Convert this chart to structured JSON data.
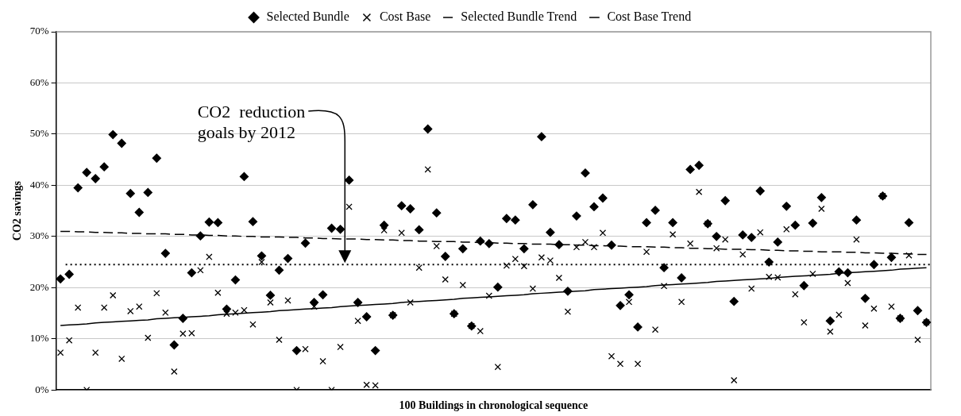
{
  "chart_data": {
    "type": "scatter",
    "xlabel": "100 Buildings in chronological sequence",
    "ylabel": "CO2 savings",
    "categories": [
      null,
      null,
      null,
      null,
      null,
      null,
      null,
      null,
      null,
      null,
      null,
      null,
      null,
      null,
      null,
      null,
      null,
      null,
      null,
      null,
      null,
      null,
      null,
      null,
      null,
      null,
      null,
      null,
      null,
      null,
      null,
      null,
      null,
      null,
      null,
      null,
      null,
      null,
      null,
      null,
      null,
      null,
      null,
      null,
      null,
      null,
      null,
      null,
      null,
      null,
      null,
      null,
      null,
      null,
      null,
      null,
      null,
      null,
      null,
      null,
      null,
      null,
      null,
      null,
      null,
      null,
      null,
      null,
      null,
      null,
      null,
      null,
      null,
      null,
      null,
      null,
      null,
      null,
      null,
      null,
      null,
      null,
      null,
      null,
      null,
      null,
      null,
      null,
      null,
      null,
      null,
      null,
      null,
      null,
      null,
      null,
      null,
      null,
      null,
      null
    ],
    "series": [
      {
        "name": "Selected Bundle",
        "marker": "diamond",
        "color": "#000000",
        "values": [
          21.7,
          22.6,
          39.5,
          42.5,
          41.3,
          43.6,
          49.9,
          48.2,
          38.4,
          34.7,
          38.6,
          45.3,
          26.7,
          8.8,
          14.0,
          22.9,
          30.1,
          32.8,
          32.7,
          15.8,
          21.5,
          41.7,
          32.9,
          26.2,
          18.5,
          23.4,
          25.7,
          7.7,
          28.7,
          17.1,
          18.6,
          31.6,
          31.4,
          41.0,
          17.1,
          14.3,
          7.7,
          32.2,
          14.6,
          36.0,
          35.4,
          31.3,
          51.0,
          34.6,
          26.1,
          14.9,
          27.6,
          12.5,
          29.1,
          28.6,
          20.1,
          33.5,
          33.2,
          27.6,
          36.2,
          49.5,
          30.8,
          28.4,
          19.3,
          34.0,
          42.4,
          35.8,
          37.5,
          28.3,
          16.5,
          18.6,
          12.3,
          32.7,
          35.1,
          23.9,
          32.7,
          21.9,
          43.1,
          43.9,
          32.5,
          30.0,
          37.0,
          17.3,
          30.3,
          29.8,
          38.9,
          25.0,
          28.9,
          35.9,
          32.2,
          20.4,
          32.6,
          37.6,
          13.5,
          23.1,
          22.9,
          33.2,
          17.9,
          24.5,
          37.9,
          25.9,
          14.0,
          32.7,
          15.5,
          13.2
        ]
      },
      {
        "name": "Cost Base",
        "marker": "cross",
        "color": "#000000",
        "values": [
          7.3,
          9.7,
          16.1,
          0,
          7.3,
          16.1,
          18.5,
          6.1,
          15.4,
          16.3,
          10.2,
          18.9,
          15.1,
          3.6,
          11.0,
          11.1,
          23.4,
          26.0,
          19.0,
          14.9,
          15.1,
          15.6,
          12.8,
          25.0,
          17.1,
          9.8,
          17.5,
          0,
          8.0,
          16.3,
          5.6,
          0,
          8.4,
          35.8,
          13.5,
          1.0,
          0.9,
          31.2,
          14.6,
          30.7,
          17.1,
          23.9,
          43.1,
          28.1,
          21.6,
          14.9,
          20.5,
          12.5,
          11.5,
          18.4,
          4.5,
          24.3,
          25.6,
          24.2,
          19.8,
          25.9,
          25.3,
          21.9,
          15.3,
          27.9,
          28.9,
          27.9,
          30.7,
          6.6,
          5.1,
          17.2,
          5.1,
          27.0,
          11.8,
          20.3,
          30.4,
          17.2,
          28.6,
          38.7,
          32.5,
          27.7,
          29.4,
          1.9,
          26.5,
          19.8,
          30.8,
          22.1,
          22.0,
          31.4,
          18.7,
          13.2,
          22.7,
          35.4,
          11.4,
          14.7,
          20.9,
          29.4,
          12.6,
          15.9,
          37.9,
          16.3,
          14.0,
          26.3,
          9.8,
          13.2
        ]
      },
      {
        "name": "Selected Bundle Trend",
        "type": "line",
        "marker": "none",
        "line_style": "dashed",
        "color": "#000000",
        "values": [
          31.0,
          31.0,
          30.9,
          30.9,
          30.8,
          30.8,
          30.7,
          30.7,
          30.6,
          30.6,
          30.5,
          30.5,
          30.5,
          30.4,
          30.4,
          30.3,
          30.3,
          30.2,
          30.2,
          30.1,
          30.1,
          30.0,
          30.0,
          29.9,
          29.9,
          29.9,
          29.8,
          29.8,
          29.7,
          29.7,
          29.6,
          29.6,
          29.5,
          29.5,
          29.5,
          29.4,
          29.4,
          29.3,
          29.3,
          29.2,
          29.2,
          29.1,
          29.1,
          29.0,
          29.0,
          29.0,
          28.9,
          28.9,
          28.8,
          28.8,
          28.7,
          28.7,
          28.6,
          28.6,
          28.5,
          28.5,
          28.5,
          28.4,
          28.4,
          28.3,
          28.3,
          28.2,
          28.2,
          28.1,
          28.1,
          28.0,
          28.0,
          28.0,
          27.9,
          27.9,
          27.8,
          27.8,
          27.7,
          27.7,
          27.6,
          27.6,
          27.5,
          27.5,
          27.5,
          27.4,
          27.4,
          27.3,
          27.3,
          27.2,
          27.2,
          27.1,
          27.1,
          27.0,
          27.0,
          27.0,
          26.9,
          26.9,
          26.8,
          26.8,
          26.7,
          26.7,
          26.6,
          26.6,
          26.5,
          26.5
        ]
      },
      {
        "name": "Cost Base Trend",
        "type": "line",
        "marker": "none",
        "line_style": "solid",
        "color": "#000000",
        "values": [
          12.6,
          12.7,
          12.8,
          12.9,
          13.1,
          13.2,
          13.3,
          13.4,
          13.5,
          13.6,
          13.7,
          13.9,
          14.0,
          14.1,
          14.2,
          14.3,
          14.4,
          14.5,
          14.7,
          14.8,
          14.9,
          15.0,
          15.1,
          15.2,
          15.3,
          15.5,
          15.6,
          15.7,
          15.8,
          15.9,
          16.0,
          16.1,
          16.3,
          16.4,
          16.5,
          16.6,
          16.7,
          16.8,
          16.9,
          17.1,
          17.2,
          17.3,
          17.4,
          17.5,
          17.6,
          17.7,
          17.9,
          18.0,
          18.1,
          18.2,
          18.3,
          18.4,
          18.5,
          18.6,
          18.8,
          18.9,
          19.0,
          19.1,
          19.2,
          19.3,
          19.4,
          19.6,
          19.7,
          19.8,
          19.9,
          20.0,
          20.1,
          20.2,
          20.4,
          20.5,
          20.6,
          20.7,
          20.8,
          20.9,
          21.0,
          21.2,
          21.3,
          21.4,
          21.5,
          21.6,
          21.7,
          21.8,
          22.0,
          22.1,
          22.2,
          22.3,
          22.4,
          22.5,
          22.6,
          22.8,
          22.9,
          23.0,
          23.1,
          23.2,
          23.3,
          23.4,
          23.6,
          23.7,
          23.8,
          23.9
        ]
      }
    ],
    "ref_lines": [
      {
        "axis": "y",
        "value": 24.5,
        "line_style": "dotted",
        "color": "#000000"
      }
    ],
    "annotations": [
      "CO2  reduction goals by 2012"
    ],
    "ylim": [
      0,
      70
    ],
    "yticks": [
      {
        "value": 0,
        "label": "0%"
      },
      {
        "value": 10,
        "label": "10%"
      },
      {
        "value": 20,
        "label": "20%"
      },
      {
        "value": 30,
        "label": "30%"
      },
      {
        "value": 40,
        "label": "40%"
      },
      {
        "value": 50,
        "label": "50%"
      },
      {
        "value": 60,
        "label": "60%"
      },
      {
        "value": 70,
        "label": "70%"
      }
    ],
    "grid": "y",
    "legend": "top",
    "tick_labels": "y"
  }
}
